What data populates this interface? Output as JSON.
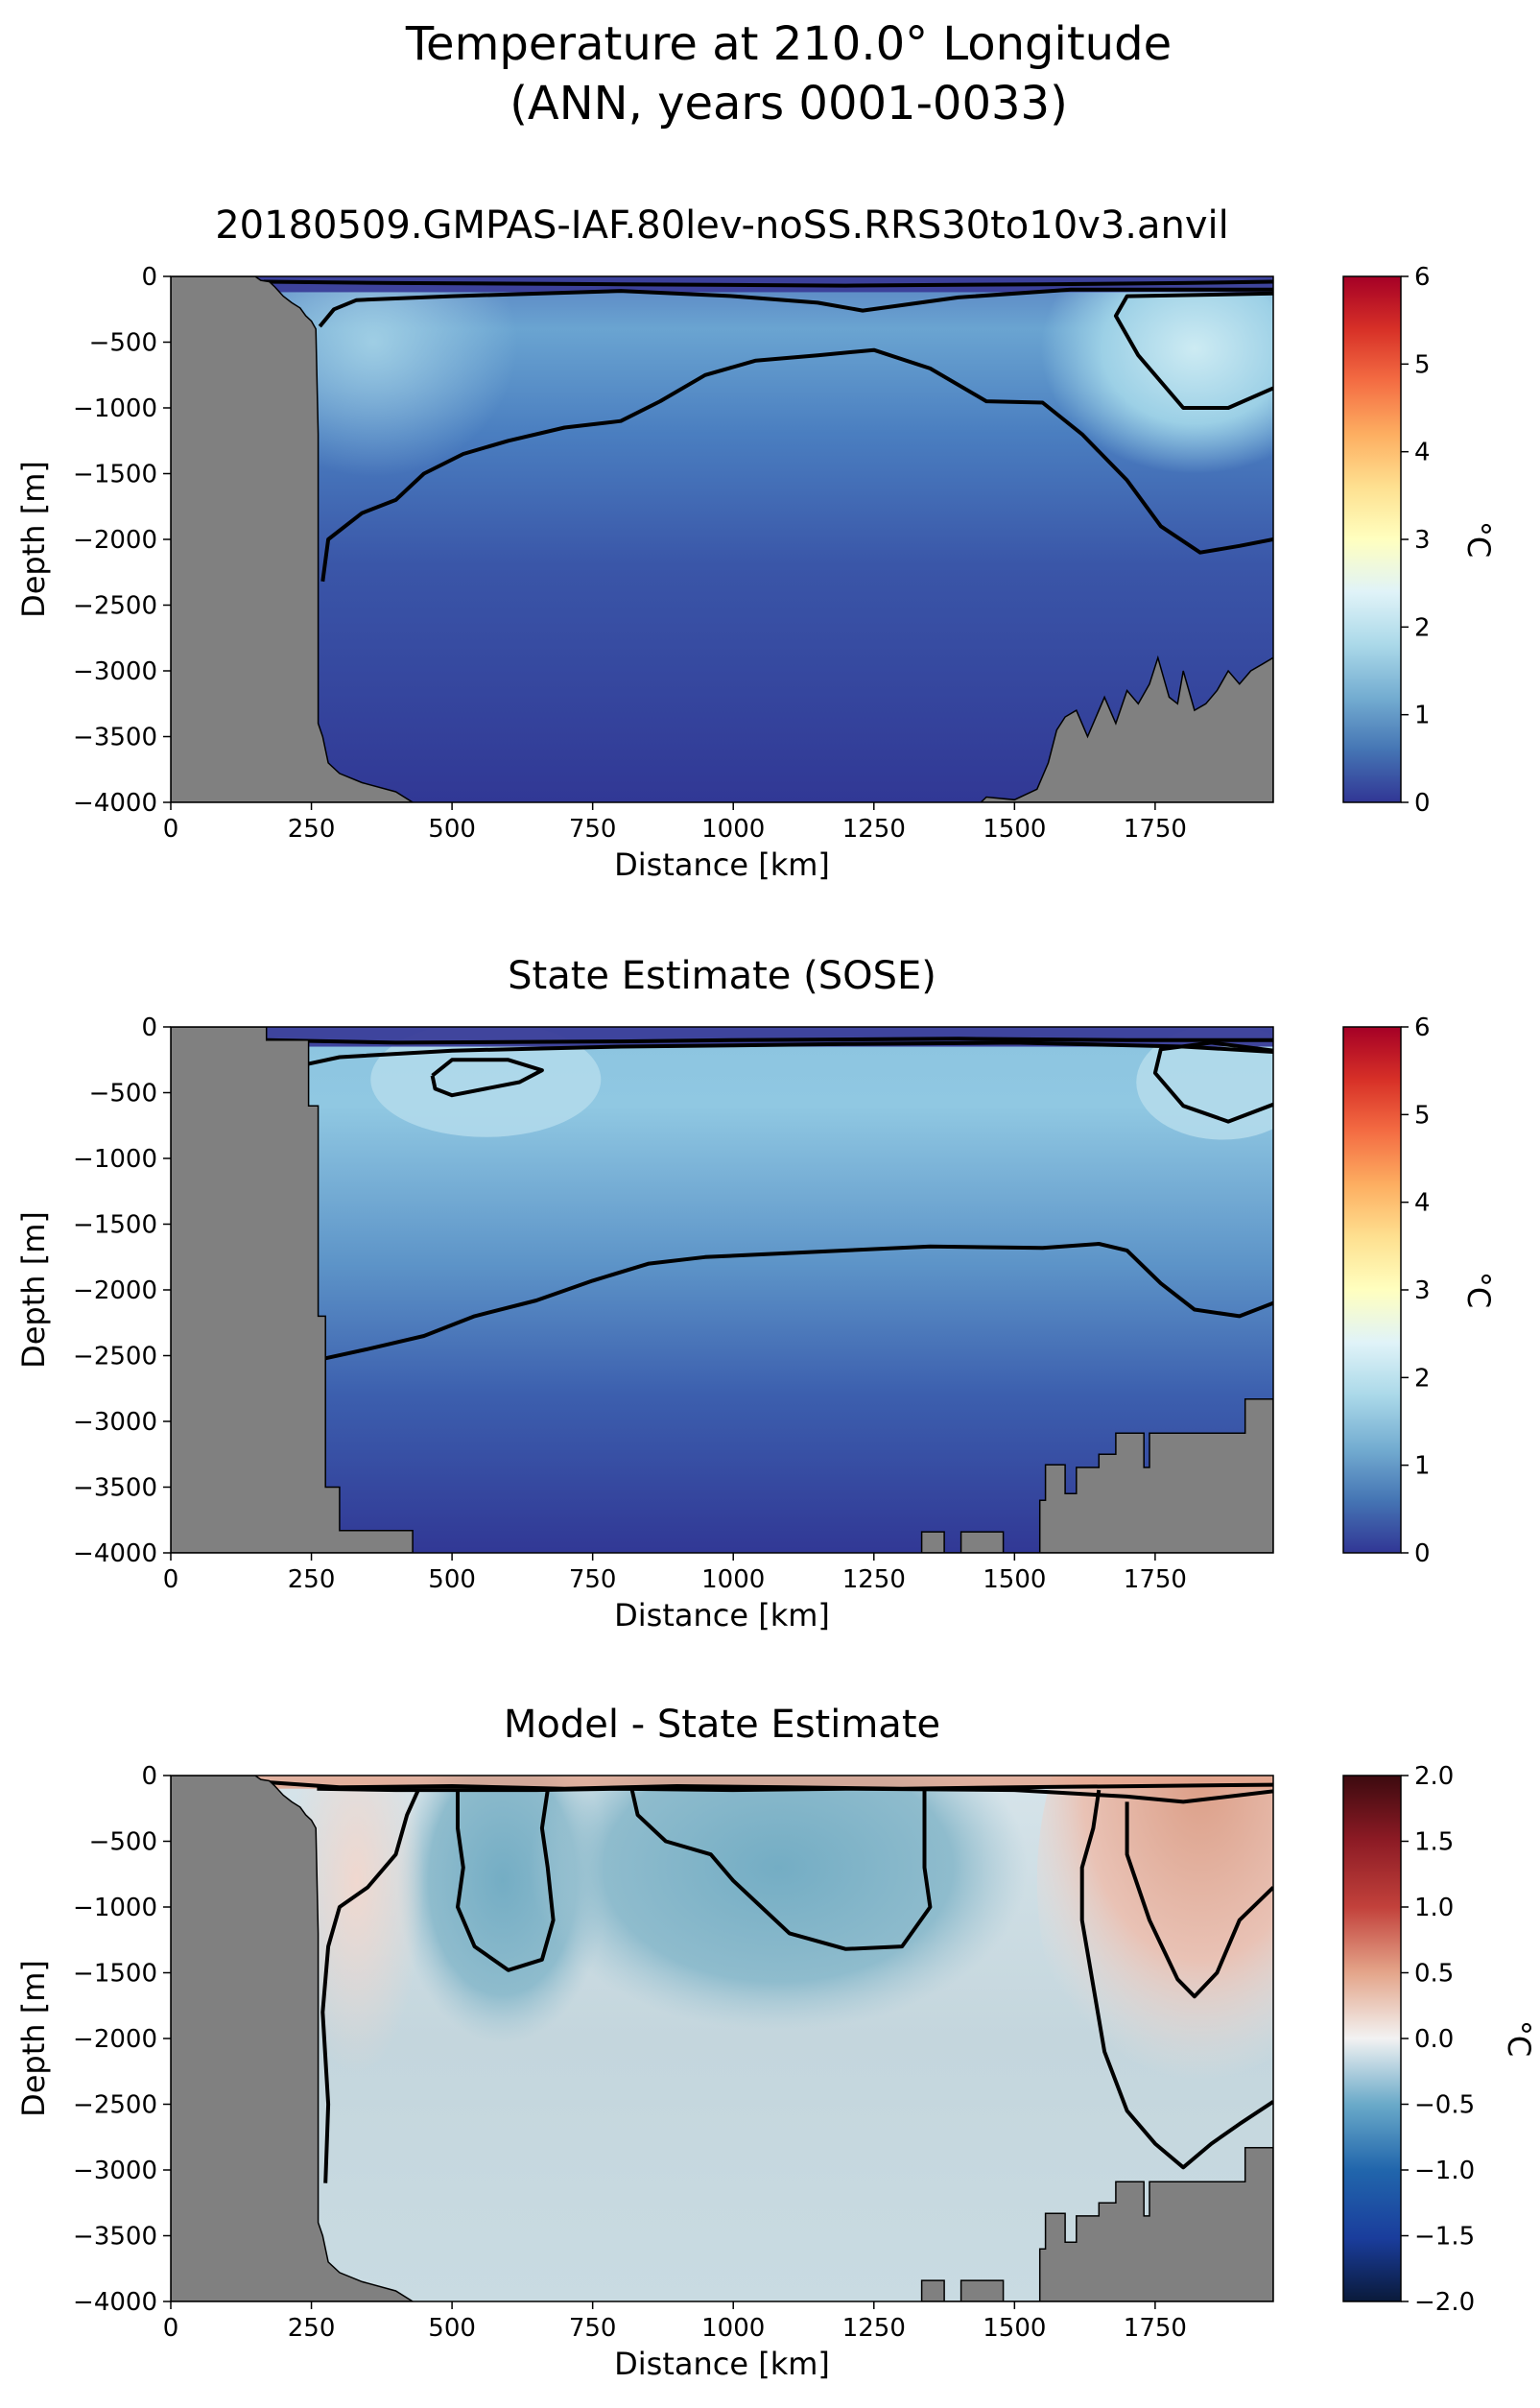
{
  "figure": {
    "title_line1": "Temperature at 210.0° Longitude",
    "title_line2": "(ANN, years 0001-0033)"
  },
  "chart_data": [
    {
      "type": "heatmap",
      "title": "20180509.GMPAS-IAF.80lev-noSS.RRS30to10v3.anvil",
      "xlabel": "Distance [km]",
      "ylabel": "Depth [m]",
      "xlim": [
        0,
        1960
      ],
      "ylim": [
        -4000,
        0
      ],
      "xticks": [
        "0",
        "250",
        "500",
        "750",
        "1000",
        "1250",
        "1500",
        "1750"
      ],
      "yticks": [
        "0",
        "−500",
        "−1000",
        "−1500",
        "−2000",
        "−2500",
        "−3000",
        "−3500",
        "−4000"
      ],
      "colorbar": {
        "label": "°C",
        "range": [
          0,
          6
        ],
        "ticks": [
          "0",
          "1",
          "2",
          "3",
          "4",
          "5",
          "6"
        ],
        "colormap": "RdYlBu_r"
      },
      "contour_levels": [
        0.5,
        1.0,
        2.0
      ],
      "mask_color": "#808080"
    },
    {
      "type": "heatmap",
      "title": "State Estimate (SOSE)",
      "xlabel": "Distance [km]",
      "ylabel": "Depth [m]",
      "xlim": [
        0,
        1960
      ],
      "ylim": [
        -4000,
        0
      ],
      "xticks": [
        "0",
        "250",
        "500",
        "750",
        "1000",
        "1250",
        "1500",
        "1750"
      ],
      "yticks": [
        "0",
        "−500",
        "−1000",
        "−1500",
        "−2000",
        "−2500",
        "−3000",
        "−3500",
        "−4000"
      ],
      "colorbar": {
        "label": "°C",
        "range": [
          0,
          6
        ],
        "ticks": [
          "0",
          "1",
          "2",
          "3",
          "4",
          "5",
          "6"
        ],
        "colormap": "RdYlBu_r"
      },
      "contour_levels": [
        0.5,
        1.0,
        2.0
      ],
      "mask_color": "#808080"
    },
    {
      "type": "heatmap",
      "title": "Model - State Estimate",
      "xlabel": "Distance [km]",
      "ylabel": "Depth [m]",
      "xlim": [
        0,
        1960
      ],
      "ylim": [
        -4000,
        0
      ],
      "xticks": [
        "0",
        "250",
        "500",
        "750",
        "1000",
        "1250",
        "1500",
        "1750"
      ],
      "yticks": [
        "0",
        "−500",
        "−1000",
        "−1500",
        "−2000",
        "−2500",
        "−3000",
        "−3500",
        "−4000"
      ],
      "colorbar": {
        "label": "°C",
        "range": [
          -2,
          2
        ],
        "ticks": [
          "−2.0",
          "−1.5",
          "−1.0",
          "−0.5",
          "0.0",
          "0.5",
          "1.0",
          "1.5",
          "2.0"
        ],
        "colormap": "RdBu_r"
      },
      "contour_levels": [
        -0.5,
        0.0,
        0.5
      ],
      "mask_color": "#808080"
    }
  ]
}
